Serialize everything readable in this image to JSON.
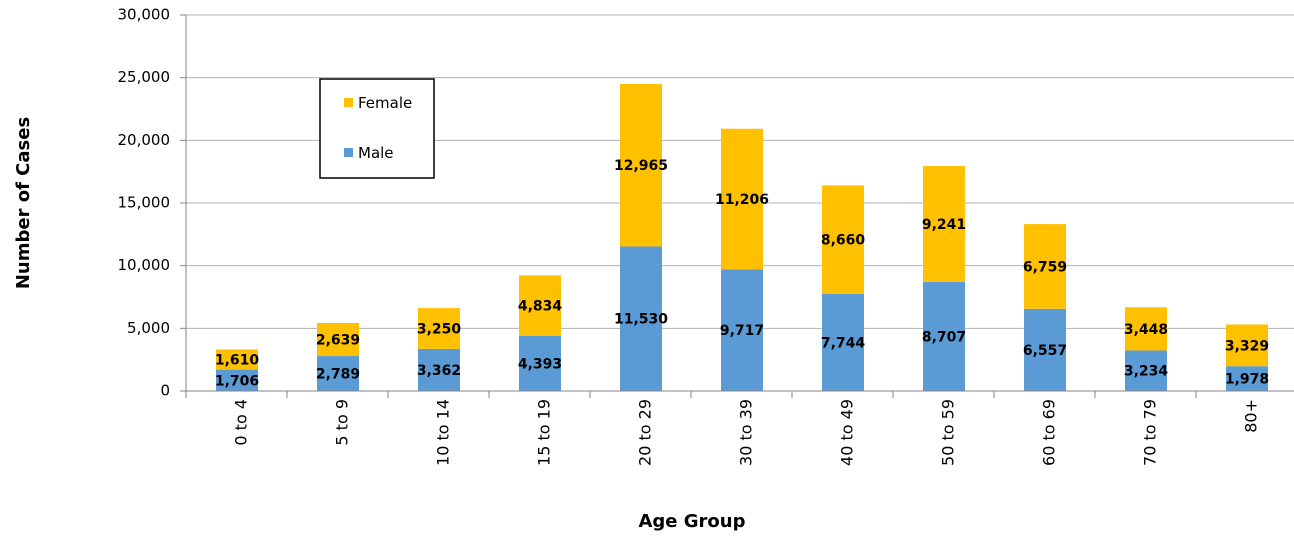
{
  "chart_data": {
    "type": "bar",
    "stacked": true,
    "xlabel": "Age Group",
    "ylabel": "Number of Cases",
    "categories": [
      "0 to 4",
      "5 to 9",
      "10 to 14",
      "15 to 19",
      "20 to 29",
      "30 to 39",
      "40 to 49",
      "50 to 59",
      "60 to 69",
      "70 to 79",
      "80+"
    ],
    "series": [
      {
        "name": "Male",
        "color": "#5B9BD5",
        "values": [
          1706,
          2789,
          3362,
          4393,
          11530,
          9717,
          7744,
          8707,
          6557,
          3234,
          1978
        ]
      },
      {
        "name": "Female",
        "color": "#FFC000",
        "values": [
          1610,
          2639,
          3250,
          4834,
          12965,
          11206,
          8660,
          9241,
          6759,
          3448,
          3329
        ]
      }
    ],
    "data_labels": {
      "Male": [
        "1,706",
        "2,789",
        "3,362",
        "4,393",
        "11,530",
        "9,717",
        "7,744",
        "8,707",
        "6,557",
        "3,234",
        "1,978"
      ],
      "Female": [
        "1,610",
        "2,639",
        "3,250",
        "4,834",
        "12,965",
        "11,206",
        "8,660",
        "9,241",
        "6,759",
        "3,448",
        "3,329"
      ]
    },
    "ylim": [
      0,
      30000
    ],
    "yticks": [
      0,
      5000,
      10000,
      15000,
      20000,
      25000,
      30000
    ],
    "ytick_labels": [
      "0",
      "5,000",
      "10,000",
      "15,000",
      "20,000",
      "25,000",
      "30,000"
    ],
    "grid": "horizontal",
    "legend": {
      "placement": "top-left",
      "order": [
        "Female",
        "Male"
      ]
    }
  }
}
